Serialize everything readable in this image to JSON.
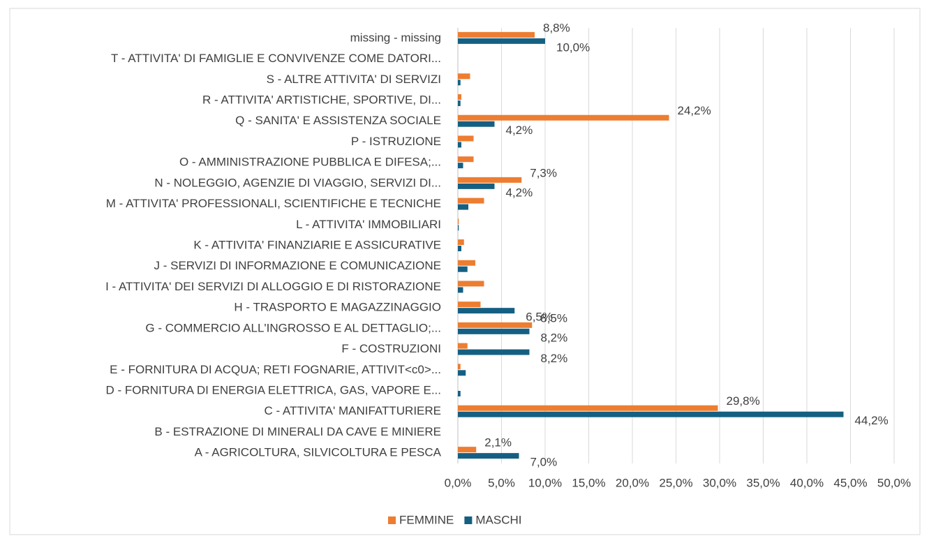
{
  "chart_data": {
    "type": "hbar",
    "categories": [
      "missing - missing",
      "T - ATTIVITA' DI FAMIGLIE E CONVIVENZE COME DATORI...",
      "S - ALTRE ATTIVITA' DI SERVIZI",
      "R - ATTIVITA' ARTISTICHE, SPORTIVE, DI...",
      "Q - SANITA' E ASSISTENZA SOCIALE",
      "P - ISTRUZIONE",
      "O - AMMINISTRAZIONE PUBBLICA E DIFESA;...",
      "N - NOLEGGIO, AGENZIE DI VIAGGIO, SERVIZI DI...",
      "M - ATTIVITA' PROFESSIONALI, SCIENTIFICHE E TECNICHE",
      "L - ATTIVITA' IMMOBILIARI",
      "K - ATTIVITA' FINANZIARIE E ASSICURATIVE",
      "J - SERVIZI DI INFORMAZIONE E COMUNICAZIONE",
      "I - ATTIVITA' DEI SERVIZI DI ALLOGGIO E DI RISTORAZIONE",
      "H - TRASPORTO E MAGAZZINAGGIO",
      "G - COMMERCIO ALL'INGROSSO E AL DETTAGLIO;...",
      "F - COSTRUZIONI",
      "E - FORNITURA DI ACQUA; RETI FOGNARIE, ATTIVIT<c0>...",
      "D - FORNITURA DI ENERGIA ELETTRICA, GAS, VAPORE E...",
      "C - ATTIVITA' MANIFATTURIERE",
      "B - ESTRAZIONE DI MINERALI DA CAVE E MINIERE",
      "A - AGRICOLTURA, SILVICOLTURA E PESCA"
    ],
    "series": [
      {
        "name": "FEMMINE",
        "color": "#ed7d31",
        "values": [
          8.8,
          0,
          1.4,
          0.4,
          24.2,
          1.8,
          1.8,
          7.3,
          3.0,
          0.1,
          0.7,
          2.0,
          3.0,
          2.6,
          8.5,
          1.1,
          0.3,
          0,
          29.8,
          0,
          2.1
        ],
        "value_labels": [
          "8,8%",
          null,
          null,
          null,
          "24,2%",
          null,
          null,
          "7,3%",
          null,
          null,
          null,
          null,
          null,
          null,
          "8,5%",
          null,
          null,
          null,
          "29,8%",
          null,
          "2,1%"
        ]
      },
      {
        "name": "MASCHI",
        "color": "#156082",
        "values": [
          10.0,
          0,
          0.3,
          0.3,
          4.2,
          0.4,
          0.6,
          4.2,
          1.2,
          0.1,
          0.4,
          1.1,
          0.6,
          6.5,
          8.2,
          8.2,
          0.9,
          0.3,
          44.2,
          0,
          7.0
        ],
        "value_labels": [
          "10,0%",
          null,
          null,
          null,
          "4,2%",
          null,
          null,
          "4,2%",
          null,
          null,
          null,
          null,
          null,
          "6,5%",
          "8,2%",
          "8,2%",
          null,
          null,
          "44,2%",
          null,
          "7,0%"
        ]
      }
    ],
    "xlim": [
      0,
      50
    ],
    "xticks": [
      {
        "value": 0,
        "label": "0,0%"
      },
      {
        "value": 5,
        "label": "5,0%"
      },
      {
        "value": 10,
        "label": "10,0%"
      },
      {
        "value": 15,
        "label": "15,0%"
      },
      {
        "value": 20,
        "label": "20,0%"
      },
      {
        "value": 25,
        "label": "25,0%"
      },
      {
        "value": 30,
        "label": "30,0%"
      },
      {
        "value": 35,
        "label": "35,0%"
      },
      {
        "value": 40,
        "label": "40,0%"
      },
      {
        "value": 45,
        "label": "45,0%"
      },
      {
        "value": 50,
        "label": "50,0%"
      }
    ],
    "grid": true,
    "legend": "bottom"
  }
}
